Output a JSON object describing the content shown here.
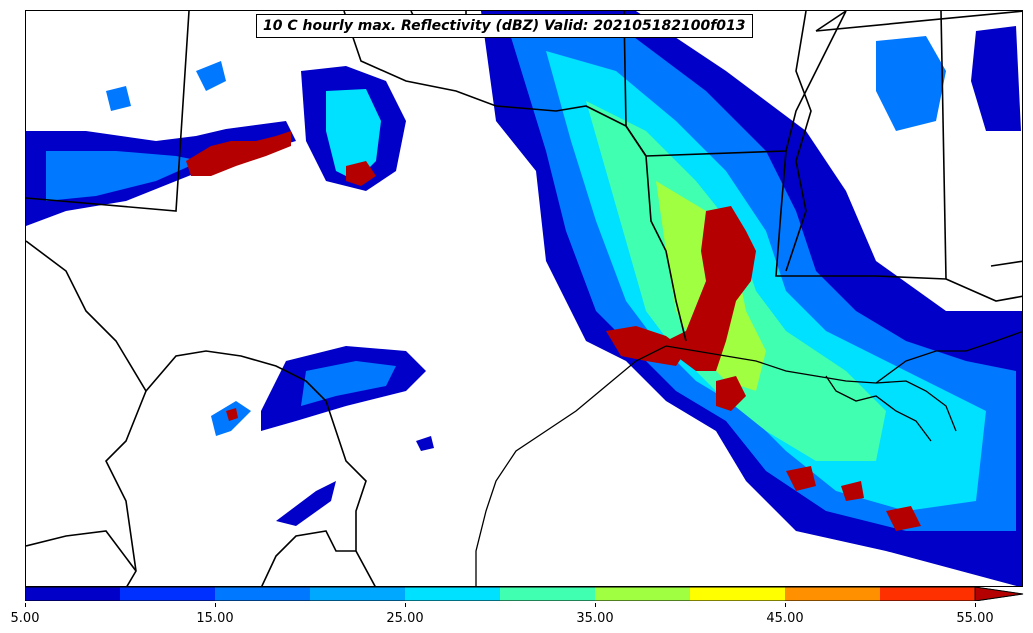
{
  "title": "10 C hourly max. Reflectivity (dBZ) Valid: 202105182100f013",
  "colorbar": {
    "colors": [
      "#0000c8",
      "#0030ff",
      "#0078ff",
      "#00a8ff",
      "#00e0ff",
      "#40ffb0",
      "#a0ff40",
      "#ffff00",
      "#ff9000",
      "#ff3000",
      "#b40000"
    ],
    "ticks": [
      "5.00",
      "15.00",
      "25.00",
      "35.00",
      "45.00",
      "55.00"
    ],
    "levels": [
      5,
      10,
      15,
      20,
      25,
      30,
      35,
      40,
      45,
      50,
      55
    ],
    "extend": "max"
  },
  "legend_position": "bottom"
}
